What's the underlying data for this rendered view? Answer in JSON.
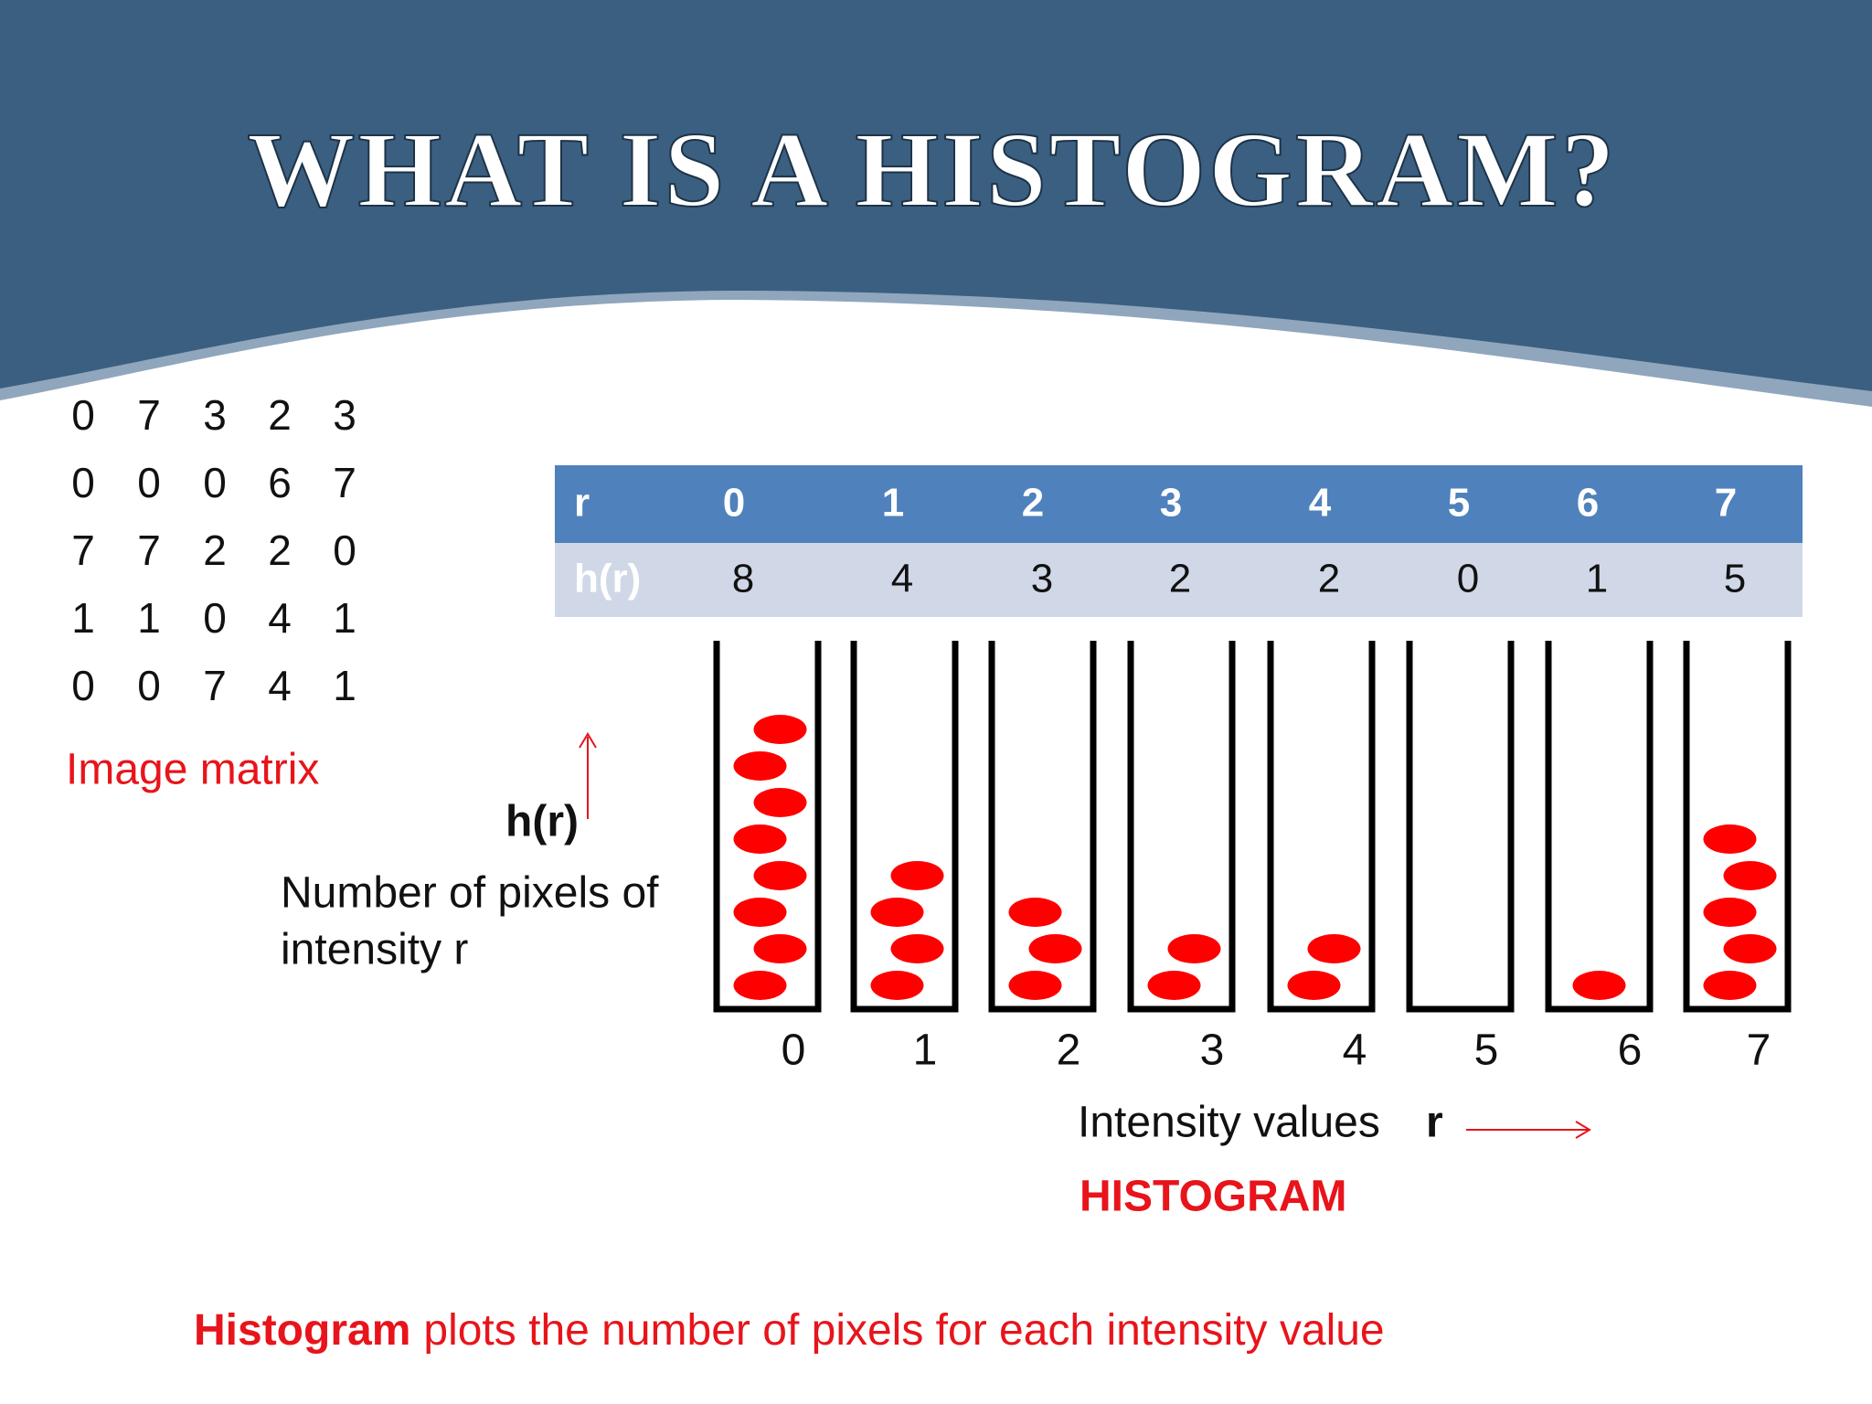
{
  "title": "WHAT IS A HISTOGRAM?",
  "matrix": {
    "rows": [
      [
        0,
        7,
        3,
        2,
        3
      ],
      [
        0,
        0,
        0,
        6,
        7
      ],
      [
        7,
        7,
        2,
        2,
        0
      ],
      [
        1,
        1,
        0,
        4,
        1
      ],
      [
        0,
        0,
        7,
        4,
        1
      ]
    ],
    "caption": "Image matrix"
  },
  "table": {
    "header_label": "r",
    "intensities": [
      0,
      1,
      2,
      3,
      4,
      5,
      6,
      7
    ],
    "count_label": "h(r)",
    "counts": [
      8,
      4,
      3,
      2,
      2,
      0,
      1,
      5
    ]
  },
  "histogram": {
    "y_label": "h(r)",
    "y_description": [
      "Number of pixels of",
      "intensity r"
    ],
    "x_ticks": [
      0,
      1,
      2,
      3,
      4,
      5,
      6,
      7
    ],
    "x_label": "Intensity values",
    "x_symbol": "r",
    "caption": "HISTOGRAM"
  },
  "footer": {
    "emphasis": "Histogram",
    "text": "plots the number of pixels for each intensity value"
  }
}
